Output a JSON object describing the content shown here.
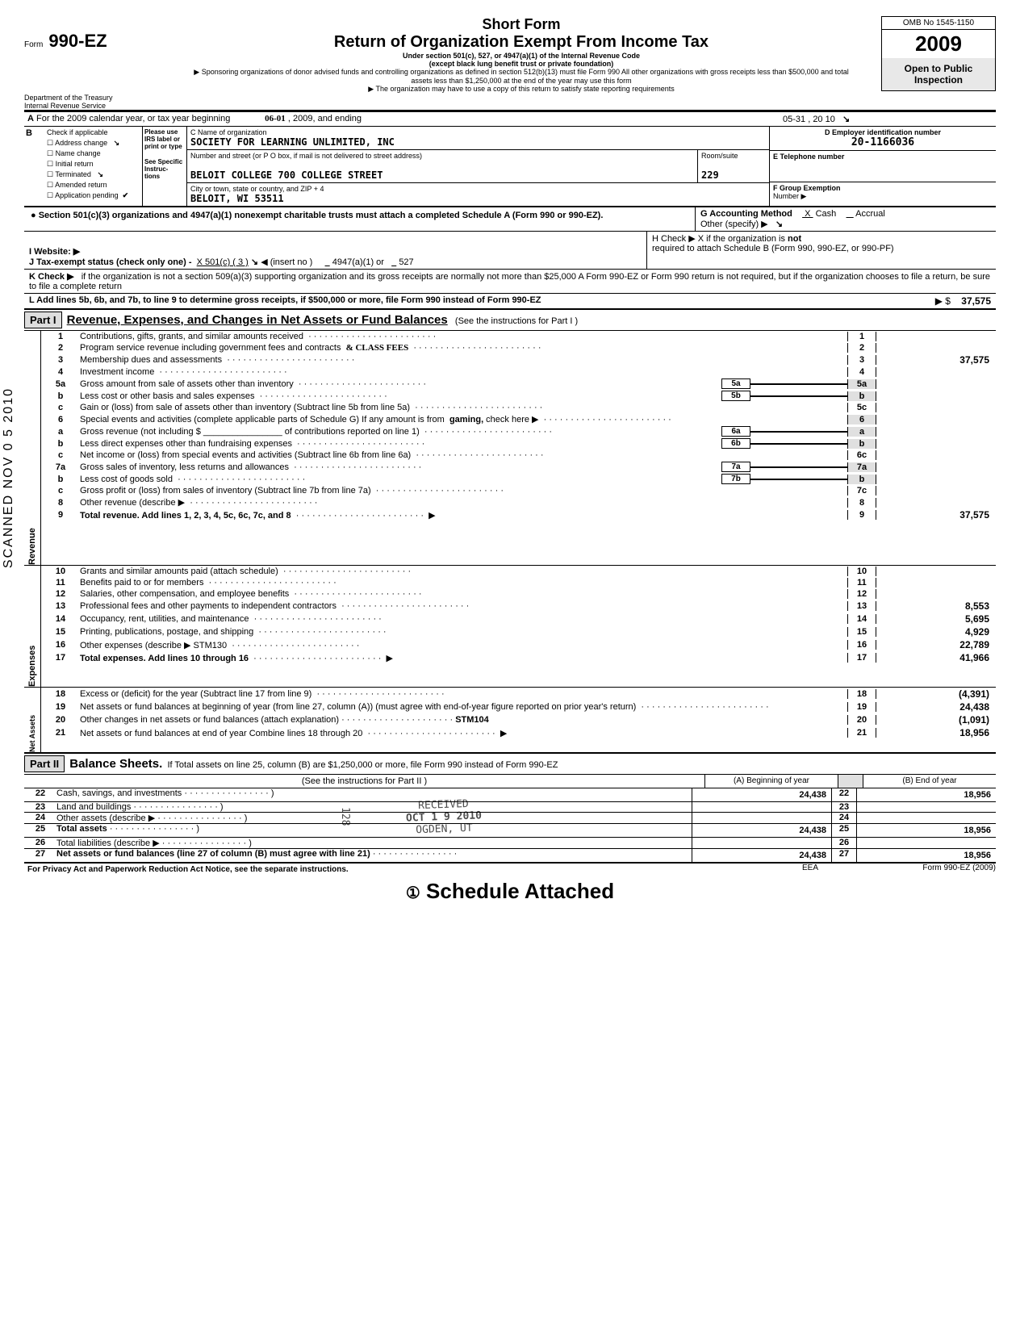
{
  "header": {
    "form_prefix": "Form",
    "form_number": "990-EZ",
    "title_line1": "Short Form",
    "title_line2": "Return of Organization Exempt From Income Tax",
    "under_section": "Under section 501(c), 527, or 4947(a)(1) of the Internal Revenue Code",
    "except": "(except black lung benefit trust or private foundation)",
    "sponsoring": "Sponsoring organizations of donor advised funds and controlling organizations as defined in section 512(b)(13) must file Form 990  All other organizations with gross receipts less than $500,000 and total assets less than $1,250,000 at the end of the year may use this form",
    "copy_note": "The organization may have to use a copy of this return to satisfy state reporting requirements",
    "omb": "OMB No 1545-1150",
    "year": "2009",
    "open_public": "Open to Public Inspection",
    "dept": "Department of the Treasury",
    "irs": "Internal Revenue Service"
  },
  "period": {
    "line_a": "For the 2009 calendar year, or tax year beginning",
    "begin": "06-01",
    "mid": ", 2009, and ending",
    "end": "05-31",
    "end2": ", 20 10"
  },
  "boxB": {
    "label": "Check if applicable",
    "items": [
      "Address change",
      "Name change",
      "Initial return",
      "Terminated",
      "Amended return",
      "Application pending"
    ],
    "please": "Please use IRS label or print or type",
    "see": "See Specific Instruc- tions"
  },
  "boxC": {
    "c_label": "C  Name of organization",
    "org_name": "SOCIETY FOR LEARNING UNLIMITED, INC",
    "street_label": "Number and street (or P O  box, if mail is not delivered to street address)",
    "street": "BELOIT COLLEGE 700 COLLEGE STREET",
    "room_label": "Room/suite",
    "room": "229",
    "city_label": "City or town, state or country, and ZIP + 4",
    "city": "BELOIT, WI 53511"
  },
  "boxD": {
    "label": "D  Employer identification number",
    "value": "20-1166036"
  },
  "boxE": {
    "label": "E   Telephone number",
    "value": ""
  },
  "boxF": {
    "label": "F   Group Exemption",
    "number_label": "Number  ▶"
  },
  "sec501": "Section 501(c)(3) organizations and 4947(a)(1) nonexempt charitable trusts must attach a completed Schedule A (Form 990 or 990-EZ).",
  "boxG": {
    "label": "G   Accounting Method",
    "cash": "Cash",
    "accrual": "Accrual",
    "other": "Other (specify) ▶"
  },
  "boxH": {
    "label": "H   Check ▶  X   if the organization is",
    "not": "not",
    "rest": "required to attach Schedule B (Form 990, 990-EZ, or 990-PF)"
  },
  "boxI": {
    "label": "I    Website:   ▶"
  },
  "boxJ": {
    "label": "J   Tax-exempt status (check only one) -",
    "opt501c": "X  501(c) (  3  )",
    "insert": "◀ (insert no )",
    "opt4947": "4947(a)(1) or",
    "opt527": "527"
  },
  "boxK": {
    "label": "K  Check ▶",
    "text": "if the organization is not a section 509(a)(3) supporting organization and its gross receipts are normally not more than $25,000  A Form 990-EZ or Form 990 return is not required, but if the organization chooses to file a return, be sure to file a complete return"
  },
  "boxL": {
    "label": "L   Add lines 5b, 6b, and 7b, to line 9 to determine gross receipts, if $500,000 or more, file Form 990 instead of Form 990-EZ",
    "arrow": "▶ $",
    "amount": "37,575"
  },
  "part1": {
    "hdr": "Part I",
    "title": "Revenue, Expenses, and Changes in Net Assets or Fund Balances",
    "see": "(See the instructions for Part I )",
    "lines": {
      "1": {
        "label": "Contributions, gifts, grants, and similar amounts received"
      },
      "2": {
        "label": "Program service revenue including government fees and contracts",
        "hand": "& CLASS FEES"
      },
      "3": {
        "label": "Membership dues and assessments",
        "amount": "37,575"
      },
      "4": {
        "label": "Investment income"
      },
      "5a": {
        "label": "Gross amount from sale of assets other than inventory",
        "box": "5a"
      },
      "5b": {
        "label": "Less  cost or other basis and sales expenses",
        "box": "5b"
      },
      "5c": {
        "label": "Gain or (loss) from sale of assets other than inventory (Subtract line 5b from line 5a)"
      },
      "6": {
        "label": "Special events and activities (complete applicable parts of Schedule G)  If any amount is from",
        "gaming": "gaming,",
        "check": "check here  ▶"
      },
      "6a": {
        "label": "Gross revenue (not including   $ ________________   of contributions reported on line 1)",
        "box": "6a"
      },
      "6b": {
        "label": "Less  direct expenses other than fundraising expenses",
        "box": "6b"
      },
      "6c": {
        "label": "Net income or (loss) from special events and activities (Subtract line 6b from line 6a)"
      },
      "7a": {
        "label": "Gross sales of inventory, less returns and allowances",
        "box": "7a"
      },
      "7b": {
        "label": "Less  cost of goods sold",
        "box": "7b"
      },
      "7c": {
        "label": "Gross profit or (loss) from sales of inventory (Subtract line 7b from line 7a)"
      },
      "8": {
        "label": "Other revenue (describe ▶"
      },
      "9": {
        "label": "Total revenue.  Add lines 1, 2, 3, 4, 5c, 6c, 7c, and 8",
        "amount": "37,575"
      },
      "10": {
        "label": "Grants and similar amounts paid (attach schedule)"
      },
      "11": {
        "label": "Benefits paid to or for members"
      },
      "12": {
        "label": "Salaries, other compensation, and employee benefits"
      },
      "13": {
        "label": "Professional fees and other payments to independent contractors",
        "amount": "8,553"
      },
      "14": {
        "label": "Occupancy, rent, utilities, and maintenance",
        "amount": "5,695"
      },
      "15": {
        "label": "Printing, publications, postage, and shipping",
        "amount": "4,929"
      },
      "16": {
        "label": "Other expenses (describe ▶  STM130",
        "amount": "22,789"
      },
      "17": {
        "label": "Total expenses.  Add lines 10 through 16",
        "amount": "41,966"
      },
      "18": {
        "label": "Excess or (deficit) for the year (Subtract line 17 from line 9)",
        "amount": "(4,391)"
      },
      "19": {
        "label": "Net assets or fund balances at beginning of year (from line 27, column (A)) (must agree with end-of-year figure reported on prior year's return)",
        "amount": "24,438"
      },
      "20": {
        "label": "Other changes in net assets or fund balances (attach explanation)",
        "stm": "STM104",
        "amount": "(1,091)"
      },
      "21": {
        "label": "Net assets or fund balances at end of year  Combine lines 18 through 20",
        "amount": "18,956"
      }
    },
    "side_rev": "Revenue",
    "side_exp": "Expenses",
    "side_na": "Net Assets"
  },
  "part2": {
    "hdr": "Part II",
    "title": "Balance Sheets.",
    "note": "If Total assets on line 25, column (B) are $1,250,000 or more, file Form 990 instead of Form 990-EZ",
    "see": "(See the instructions for Part II )",
    "colA": "(A) Beginning of year",
    "colB": "(B) End of year",
    "lines": {
      "22": {
        "label": "Cash, savings, and investments",
        "a": "24,438",
        "b": "18,956"
      },
      "23": {
        "label": "Land and buildings"
      },
      "24": {
        "label": "Other assets (describe ▶"
      },
      "25": {
        "label": "Total assets",
        "a": "24,438",
        "b": "18,956"
      },
      "26": {
        "label": "Total liabilities (describe  ▶"
      },
      "27": {
        "label": "Net assets or fund balances (line 27 of column (B) must agree with line 21)",
        "a": "24,438",
        "b": "18,956"
      }
    }
  },
  "footer": {
    "privacy": "For Privacy Act and Paperwork Reduction Act Notice, see the separate instructions.",
    "eea": "EEA",
    "form": "Form 990-EZ (2009)",
    "schedule": "Schedule Attached",
    "circ": "①"
  },
  "stamps": {
    "scanned": "SCANNED NOV 0 5 2010",
    "received_date": "OCT 1 9 2010",
    "received_dept": "OGDEN, UT",
    "received_num": "128"
  }
}
